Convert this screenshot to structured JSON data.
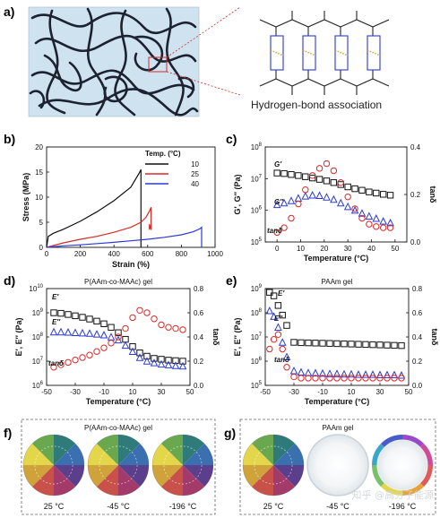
{
  "panels": {
    "a": {
      "letter": "a)",
      "caption": "Hydrogen-bond association"
    },
    "f": {
      "letter": "f)",
      "title": "P(AAm-co-MAAc) gel",
      "temps": [
        "25 °C",
        "-45 °C",
        "-196 °C"
      ]
    },
    "g": {
      "letter": "g)",
      "title": "PAAm gel",
      "temps": [
        "25 °C",
        "-45 °C",
        "-196 °C"
      ]
    }
  },
  "watermark": "知乎 @高分子能源",
  "chart_data": [
    {
      "id": "b",
      "letter": "b)",
      "type": "line",
      "xlabel": "Strain (%)",
      "ylabel": "Stress (MPa)",
      "xlim": [
        0,
        1000
      ],
      "ylim": [
        0,
        20
      ],
      "xticks": [
        0,
        200,
        400,
        600,
        800,
        1000
      ],
      "yticks": [
        0,
        5,
        10,
        15,
        20
      ],
      "legend_title": "Temp. (°C)",
      "legend_position": "top-right",
      "series": [
        {
          "name": "10",
          "color": "#111111",
          "x": [
            0,
            10,
            40,
            100,
            200,
            300,
            400,
            500,
            550,
            560,
            560
          ],
          "y": [
            0,
            2.2,
            2.8,
            3.6,
            5.2,
            7.1,
            9.3,
            12.0,
            14.8,
            15.5,
            0
          ]
        },
        {
          "name": "25",
          "color": "#d62a2a",
          "x": [
            0,
            100,
            200,
            300,
            400,
            500,
            560,
            590,
            610,
            620,
            620,
            610,
            610
          ],
          "y": [
            0,
            0.9,
            1.6,
            2.2,
            3.0,
            4.0,
            5.0,
            6.0,
            7.2,
            8.0,
            3.5,
            4.6,
            3.5
          ]
        },
        {
          "name": "40",
          "color": "#2a3ad6",
          "x": [
            0,
            100,
            200,
            300,
            400,
            500,
            600,
            700,
            800,
            870,
            910,
            920,
            920
          ],
          "y": [
            0,
            0.3,
            0.5,
            0.75,
            1.0,
            1.3,
            1.6,
            2.0,
            2.5,
            3.1,
            3.7,
            4.0,
            0
          ]
        }
      ]
    },
    {
      "id": "c",
      "letter": "c)",
      "type": "scatter",
      "xlabel": "Temperature (°C)",
      "ylabel": "G′, G″ (Pa)",
      "y2label": "tanδ",
      "xlim": [
        -5,
        55
      ],
      "ylim_log10": [
        5,
        8
      ],
      "y2lim": [
        0,
        0.4
      ],
      "xticks": [
        0,
        10,
        20,
        30,
        40,
        50
      ],
      "yticks_exp": [
        5,
        6,
        7,
        8
      ],
      "y2ticks": [
        "0.0",
        "0.2",
        "0.4"
      ],
      "series": [
        {
          "name": "G′",
          "color": "#111111",
          "marker": "square",
          "axis": "log",
          "x": [
            0,
            3,
            6,
            9,
            12,
            15,
            18,
            21,
            24,
            27,
            30,
            33,
            36,
            39,
            42,
            45,
            48
          ],
          "y": [
            15000000.0,
            14500000.0,
            13500000.0,
            12500000.0,
            11500000.0,
            10500000.0,
            9500000.0,
            8500000.0,
            7500000.0,
            6500000.0,
            5500000.0,
            4800000.0,
            4300000.0,
            3800000.0,
            3500000.0,
            3200000.0,
            3000000.0
          ]
        },
        {
          "name": "G″",
          "color": "#2a3ad6",
          "marker": "triangle",
          "axis": "log",
          "x": [
            0,
            3,
            6,
            9,
            12,
            15,
            18,
            21,
            24,
            27,
            30,
            33,
            36,
            39,
            42,
            45,
            48
          ],
          "y": [
            1500000.0,
            1700000.0,
            2000000.0,
            2400000.0,
            2800000.0,
            3000000.0,
            2900000.0,
            2600000.0,
            2200000.0,
            1700000.0,
            1300000.0,
            1000000.0,
            800000.0,
            650000.0,
            550000.0,
            450000.0,
            400000.0
          ]
        },
        {
          "name": "tanδ",
          "color": "#d62a2a",
          "marker": "circle",
          "axis": "linear",
          "x": [
            0,
            3,
            6,
            9,
            12,
            15,
            18,
            21,
            24,
            27,
            30,
            33,
            36,
            39,
            42,
            45,
            48
          ],
          "y": [
            0.04,
            0.06,
            0.1,
            0.16,
            0.22,
            0.28,
            0.31,
            0.33,
            0.3,
            0.25,
            0.19,
            0.14,
            0.1,
            0.075,
            0.065,
            0.06,
            0.06
          ]
        }
      ]
    },
    {
      "id": "d",
      "letter": "d)",
      "type": "scatter",
      "title": "P(AAm-co-MAAc) gel",
      "xlabel": "Temperature (°C)",
      "ylabel": "E′, E″ (Pa)",
      "y2label": "tanδ",
      "xlim": [
        -50,
        50
      ],
      "ylim_log10": [
        6,
        10
      ],
      "y2lim": [
        0,
        0.8
      ],
      "xticks": [
        -50,
        -30,
        -10,
        10,
        30,
        50
      ],
      "yticks_exp": [
        6,
        7,
        8,
        9,
        10
      ],
      "y2ticks": [
        "0.0",
        "0.2",
        "0.4",
        "0.6",
        "0.8"
      ],
      "series": [
        {
          "name": "E′",
          "color": "#111111",
          "marker": "square",
          "axis": "log",
          "x": [
            -45,
            -40,
            -35,
            -30,
            -25,
            -20,
            -15,
            -10,
            -5,
            0,
            5,
            10,
            15,
            20,
            25,
            30,
            35,
            40,
            45
          ],
          "y": [
            1000000000.0,
            950000000.0,
            850000000.0,
            750000000.0,
            650000000.0,
            550000000.0,
            450000000.0,
            350000000.0,
            250000000.0,
            150000000.0,
            80000000.0,
            40000000.0,
            22000000.0,
            16000000.0,
            13000000.0,
            12000000.0,
            11000000.0,
            10500000.0,
            10000000.0
          ]
        },
        {
          "name": "E″",
          "color": "#2a3ad6",
          "marker": "triangle",
          "axis": "log",
          "x": [
            -45,
            -40,
            -35,
            -30,
            -25,
            -20,
            -15,
            -10,
            -5,
            0,
            5,
            10,
            15,
            20,
            25,
            30,
            35,
            40,
            45
          ],
          "y": [
            160000000.0,
            160000000.0,
            155000000.0,
            150000000.0,
            145000000.0,
            140000000.0,
            130000000.0,
            120000000.0,
            100000000.0,
            75000000.0,
            45000000.0,
            25000000.0,
            14000000.0,
            10000000.0,
            8500000.0,
            7500000.0,
            7000000.0,
            6500000.0,
            6200000.0
          ]
        },
        {
          "name": "tanδ",
          "color": "#d62a2a",
          "marker": "circle",
          "axis": "linear",
          "x": [
            -45,
            -40,
            -35,
            -30,
            -25,
            -20,
            -15,
            -10,
            -5,
            0,
            5,
            10,
            15,
            20,
            25,
            30,
            35,
            40,
            45
          ],
          "y": [
            0.15,
            0.17,
            0.19,
            0.21,
            0.23,
            0.25,
            0.28,
            0.31,
            0.35,
            0.4,
            0.47,
            0.56,
            0.62,
            0.6,
            0.55,
            0.5,
            0.48,
            0.47,
            0.46
          ]
        }
      ]
    },
    {
      "id": "e",
      "letter": "e)",
      "type": "scatter",
      "title": "PAAm gel",
      "xlabel": "Temperature (°C)",
      "ylabel": "E′, E″ (Pa)",
      "y2label": "tanδ",
      "xlim": [
        -50,
        50
      ],
      "ylim_log10": [
        5,
        9
      ],
      "y2lim": [
        0,
        0.8
      ],
      "xticks": [
        -50,
        -30,
        -10,
        10,
        30,
        50
      ],
      "yticks_exp": [
        5,
        6,
        7,
        8,
        9
      ],
      "y2ticks": [
        "0.0",
        "0.2",
        "0.4",
        "0.6",
        "0.8"
      ],
      "series": [
        {
          "name": "E′",
          "color": "#111111",
          "marker": "square",
          "axis": "log",
          "x": [
            -47,
            -44,
            -41,
            -38,
            -35,
            -30,
            -25,
            -20,
            -15,
            -10,
            -5,
            0,
            5,
            10,
            15,
            20,
            25,
            30,
            35,
            40,
            45
          ],
          "y": [
            700000000.0,
            500000000.0,
            200000000.0,
            80000000.0,
            30000000.0,
            6000000.0,
            5800000.0,
            5700000.0,
            5600000.0,
            5500000.0,
            5400000.0,
            5300000.0,
            5200000.0,
            5100000.0,
            5000000.0,
            4900000.0,
            4800000.0,
            4700000.0,
            4600000.0,
            4500000.0,
            4400000.0
          ]
        },
        {
          "name": "E″",
          "color": "#2a3ad6",
          "marker": "triangle",
          "axis": "log",
          "x": [
            -47,
            -44,
            -41,
            -38,
            -35,
            -30,
            -25,
            -20,
            -15,
            -10,
            -5,
            0,
            5,
            10,
            15,
            20,
            25,
            30,
            35,
            40,
            45
          ],
          "y": [
            120000000.0,
            70000000.0,
            25000000.0,
            6000000.0,
            1500000.0,
            400000.0,
            350000.0,
            330000.0,
            320000.0,
            310000.0,
            300000.0,
            300000.0,
            290000.0,
            290000.0,
            280000.0,
            280000.0,
            280000.0,
            270000.0,
            270000.0,
            270000.0,
            260000.0
          ]
        },
        {
          "name": "tanδ",
          "color": "#d62a2a",
          "marker": "circle",
          "axis": "linear",
          "x": [
            -47,
            -44,
            -41,
            -38,
            -35,
            -30,
            -25,
            -20,
            -15,
            -10,
            -5,
            0,
            5,
            10,
            15,
            20,
            25,
            30,
            35,
            40,
            45
          ],
          "y": [
            0.3,
            0.38,
            0.42,
            0.3,
            0.15,
            0.07,
            0.06,
            0.06,
            0.06,
            0.06,
            0.06,
            0.06,
            0.06,
            0.06,
            0.06,
            0.06,
            0.06,
            0.06,
            0.06,
            0.06,
            0.06
          ]
        }
      ]
    }
  ]
}
